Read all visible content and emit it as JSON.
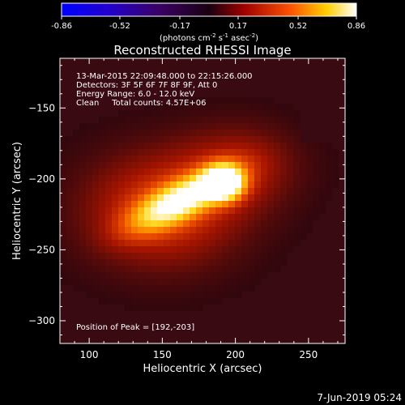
{
  "chart_data": {
    "type": "heatmap",
    "title": "Reconstructed RHESSI Image",
    "xlabel": "Heliocentric X (arcsec)",
    "ylabel": "Heliocentric Y (arcsec)",
    "xlim": [
      80,
      275
    ],
    "ylim": [
      -316,
      -115
    ],
    "x_ticks": [
      100,
      150,
      200,
      250
    ],
    "y_ticks": [
      -150,
      -200,
      -250,
      -300
    ],
    "colorbar": {
      "ticks": [
        "-0.86",
        "-0.52",
        "-0.17",
        "0.17",
        "0.52",
        "0.86"
      ],
      "min": -0.86,
      "max": 0.86,
      "label": "(photons cm",
      "label_sup1": "-2",
      "label_mid": " s",
      "label_sup2": "-1",
      "label_mid2": " asec",
      "label_sup3": "-2",
      "label_end": ")",
      "colormap": "thermal"
    },
    "annotations": [
      "13-Mar-2015 22:09:48.000 to 22:15:26.000",
      "Detectors: 3F 5F 6F 7F 8F 9F, Att 0",
      "Energy Range: 6.0 - 12.0 keV",
      "Clean     Total counts: 4.57E+06"
    ],
    "peak_label": "Position of Peak = [192,-203]",
    "sources": [
      {
        "x": 192,
        "y": -203,
        "intensity": 0.86,
        "sx": 9,
        "sy": 8
      },
      {
        "x": 163,
        "y": -215,
        "intensity": 0.62,
        "sx": 26,
        "sy": 9,
        "rotation": 28
      },
      {
        "x": 150,
        "y": -222,
        "intensity": 0.35,
        "sx": 40,
        "sy": 30,
        "rotation": 0
      },
      {
        "x": 205,
        "y": -190,
        "intensity": 0.2,
        "sx": 30,
        "sy": 22,
        "rotation": 0
      }
    ]
  },
  "footer": {
    "date": "7-Jun-2019 05:24"
  }
}
